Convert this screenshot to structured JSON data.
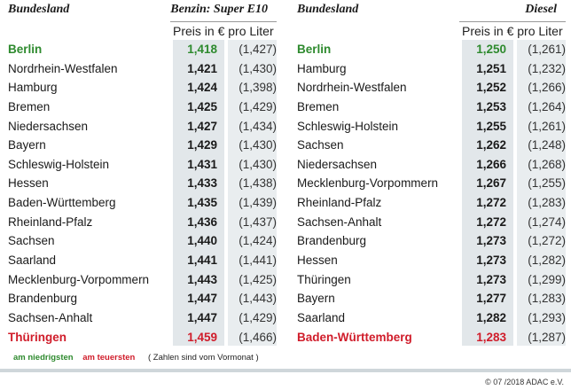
{
  "chart_data": [
    {
      "type": "table",
      "column_title": "Bundesland",
      "fuel_title": "Benzin: Super E10",
      "unit_label": "Preis in € pro Liter",
      "rows": [
        {
          "state": "Berlin",
          "price": "1,418",
          "prev": "(1,427)",
          "mark": "low"
        },
        {
          "state": "Nordrhein-Westfalen",
          "price": "1,421",
          "prev": "(1,430)"
        },
        {
          "state": "Hamburg",
          "price": "1,424",
          "prev": "(1,398)"
        },
        {
          "state": "Bremen",
          "price": "1,425",
          "prev": "(1,429)"
        },
        {
          "state": "Niedersachsen",
          "price": "1,427",
          "prev": "(1,434)"
        },
        {
          "state": "Bayern",
          "price": "1,429",
          "prev": "(1,430)"
        },
        {
          "state": "Schleswig-Holstein",
          "price": "1,431",
          "prev": "(1,430)"
        },
        {
          "state": "Hessen",
          "price": "1,433",
          "prev": "(1,438)"
        },
        {
          "state": "Baden-Württemberg",
          "price": "1,435",
          "prev": "(1,439)"
        },
        {
          "state": "Rheinland-Pfalz",
          "price": "1,436",
          "prev": "(1,437)"
        },
        {
          "state": "Sachsen",
          "price": "1,440",
          "prev": "(1,424)"
        },
        {
          "state": "Saarland",
          "price": "1,441",
          "prev": "(1,441)"
        },
        {
          "state": "Mecklenburg-Vorpommern",
          "price": "1,443",
          "prev": "(1,425)"
        },
        {
          "state": "Brandenburg",
          "price": "1,447",
          "prev": "(1,443)"
        },
        {
          "state": "Sachsen-Anhalt",
          "price": "1,447",
          "prev": "(1,429)"
        },
        {
          "state": "Thüringen",
          "price": "1,459",
          "prev": "(1,466)",
          "mark": "high"
        }
      ]
    },
    {
      "type": "table",
      "column_title": "Bundesland",
      "fuel_title": "Diesel",
      "unit_label": "Preis in € pro Liter",
      "rows": [
        {
          "state": "Berlin",
          "price": "1,250",
          "prev": "(1,261)",
          "mark": "low"
        },
        {
          "state": "Hamburg",
          "price": "1,251",
          "prev": "(1,232)"
        },
        {
          "state": "Nordrhein-Westfalen",
          "price": "1,252",
          "prev": "(1,266)"
        },
        {
          "state": "Bremen",
          "price": "1,253",
          "prev": "(1,264)"
        },
        {
          "state": "Schleswig-Holstein",
          "price": "1,255",
          "prev": "(1,261)"
        },
        {
          "state": "Sachsen",
          "price": "1,262",
          "prev": "(1,248)"
        },
        {
          "state": "Niedersachsen",
          "price": "1,266",
          "prev": "(1,268)"
        },
        {
          "state": "Mecklenburg-Vorpommern",
          "price": "1,267",
          "prev": "(1,255)"
        },
        {
          "state": "Rheinland-Pfalz",
          "price": "1,272",
          "prev": "(1,283)"
        },
        {
          "state": "Sachsen-Anhalt",
          "price": "1,272",
          "prev": "(1,274)"
        },
        {
          "state": "Brandenburg",
          "price": "1,273",
          "prev": "(1,272)"
        },
        {
          "state": "Hessen",
          "price": "1,273",
          "prev": "(1,282)"
        },
        {
          "state": "Thüringen",
          "price": "1,273",
          "prev": "(1,299)"
        },
        {
          "state": "Bayern",
          "price": "1,277",
          "prev": "(1,283)"
        },
        {
          "state": "Saarland",
          "price": "1,282",
          "prev": "(1,293)"
        },
        {
          "state": "Baden-Württemberg",
          "price": "1,283",
          "prev": "(1,287)",
          "mark": "high"
        }
      ]
    }
  ],
  "legend": {
    "lowest": "am niedrigsten",
    "highest": "am teuersten",
    "note": "( Zahlen sind vom Vormonat )"
  },
  "colors": {
    "lowest": "#2e8a2e",
    "highest": "#d01c2a"
  },
  "credit": "© 07 /2018 ADAC e.V."
}
